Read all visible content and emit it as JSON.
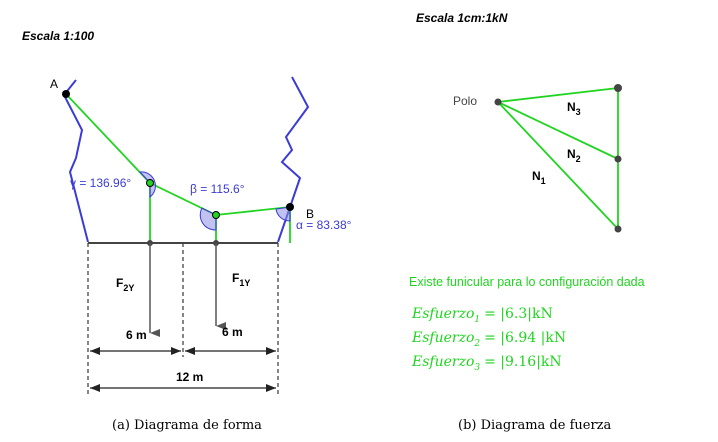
{
  "left_diagram": {
    "scale_title": "Escala 1:100",
    "point_a": "A",
    "point_b": "B",
    "gamma": "γ = 136.96°",
    "beta": "β = 115.6°",
    "alpha": "α = 83.38°",
    "force1": {
      "main": "F",
      "sub": "2Y"
    },
    "force2": {
      "main": "F",
      "sub": "1Y"
    },
    "dim_left": "6 m",
    "dim_right": "6 m",
    "dim_total": "12 m",
    "caption": "(a)  Diagrama de forma"
  },
  "right_diagram": {
    "scale_title": "Escala 1cm:1kN",
    "polo": "Polo",
    "n3": {
      "main": "N",
      "sub": "3"
    },
    "n2": {
      "main": "N",
      "sub": "2"
    },
    "n1": {
      "main": "N",
      "sub": "1"
    },
    "status": "Existe funicular para lo configuración dada",
    "esfuerzos": [
      {
        "name": "Esfuerzo",
        "sub": "1",
        "value": "= |6.3|kN"
      },
      {
        "name": "Esfuerzo",
        "sub": "2",
        "value": "= |6.94 |kN"
      },
      {
        "name": "Esfuerzo",
        "sub": "3",
        "value": "= |9.16|kN"
      }
    ],
    "caption": "(b)  Diagrama de fuerza"
  },
  "colors": {
    "green": "#22d422",
    "blue": "#3b3bd6",
    "dark": "#444444"
  }
}
